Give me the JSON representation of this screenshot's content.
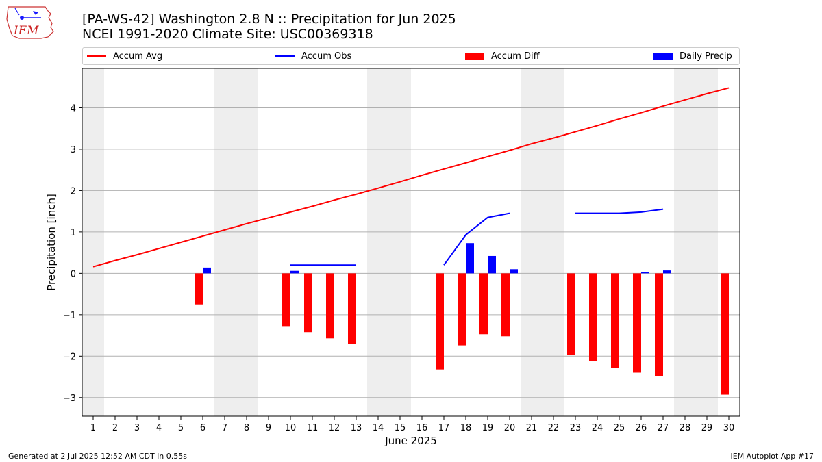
{
  "header": {
    "title_line1": "[PA-WS-42] Washington 2.8 N :: Precipitation for Jun 2025",
    "title_line2": "NCEI 1991-2020 Climate Site: USC00369318"
  },
  "logo": {
    "text": "IEM"
  },
  "legend": {
    "accum_avg": "Accum Avg",
    "accum_obs": "Accum Obs",
    "accum_diff": "Accum Diff",
    "daily_precip": "Daily Precip"
  },
  "footer": {
    "left": "Generated at 2 Jul 2025 12:52 AM CDT in 0.55s",
    "right": "IEM Autoplot App #17"
  },
  "colors": {
    "accum_avg": "#ff0000",
    "accum_obs": "#0000ff",
    "accum_diff": "#ff0000",
    "daily_precip": "#0000ff",
    "weekend_shade": "#eeeeee",
    "grid": "#b0b0b0"
  },
  "chart_data": {
    "type": "bar",
    "xlabel": "June 2025",
    "ylabel": "Precipitation [inch]",
    "xlim": [
      0.5,
      30.5
    ],
    "ylim": [
      -3.45,
      4.95
    ],
    "y_ticks": [
      -3,
      -2,
      -1,
      0,
      1,
      2,
      3,
      4
    ],
    "x_ticks": [
      1,
      2,
      3,
      4,
      5,
      6,
      7,
      8,
      9,
      10,
      11,
      12,
      13,
      14,
      15,
      16,
      17,
      18,
      19,
      20,
      21,
      22,
      23,
      24,
      25,
      26,
      27,
      28,
      29,
      30
    ],
    "grid": true,
    "legend_position": "top",
    "weekend_shading": [
      [
        0.5,
        1.5
      ],
      [
        6.5,
        8.5
      ],
      [
        13.5,
        15.5
      ],
      [
        20.5,
        22.5
      ],
      [
        27.5,
        29.5
      ]
    ],
    "series": [
      {
        "name": "Accum Avg",
        "type": "line",
        "x": [
          1,
          2,
          3,
          4,
          5,
          6,
          7,
          8,
          9,
          10,
          11,
          12,
          13,
          14,
          15,
          16,
          17,
          18,
          19,
          20,
          21,
          22,
          23,
          24,
          25,
          26,
          27,
          28,
          29,
          30
        ],
        "values": [
          0.16,
          0.31,
          0.45,
          0.6,
          0.75,
          0.9,
          1.05,
          1.2,
          1.34,
          1.48,
          1.62,
          1.77,
          1.91,
          2.06,
          2.21,
          2.37,
          2.52,
          2.67,
          2.82,
          2.97,
          3.13,
          3.27,
          3.42,
          3.57,
          3.73,
          3.88,
          4.04,
          4.19,
          4.34,
          4.48
        ]
      },
      {
        "name": "Accum Obs",
        "type": "line",
        "segments": [
          {
            "x": [
              10,
              11,
              12,
              13
            ],
            "values": [
              0.2,
              0.2,
              0.2,
              0.2
            ]
          },
          {
            "x": [
              17,
              18,
              19,
              20
            ],
            "values": [
              0.2,
              0.93,
              1.35,
              1.45
            ]
          },
          {
            "x": [
              23,
              24,
              25,
              26,
              27
            ],
            "values": [
              1.45,
              1.45,
              1.45,
              1.48,
              1.55
            ]
          }
        ]
      },
      {
        "name": "Accum Diff",
        "type": "bar",
        "x": [
          6,
          10,
          11,
          12,
          13,
          17,
          18,
          19,
          20,
          23,
          24,
          25,
          26,
          27,
          30
        ],
        "values": [
          -0.75,
          -1.29,
          -1.42,
          -1.57,
          -1.71,
          -2.32,
          -1.74,
          -1.47,
          -1.52,
          -1.97,
          -2.12,
          -2.28,
          -2.4,
          -2.49,
          -2.93
        ]
      },
      {
        "name": "Daily Precip",
        "type": "bar",
        "x": [
          6,
          10,
          18,
          19,
          20,
          26,
          27
        ],
        "values": [
          0.14,
          0.06,
          0.73,
          0.42,
          0.1,
          0.03,
          0.07
        ]
      }
    ]
  }
}
